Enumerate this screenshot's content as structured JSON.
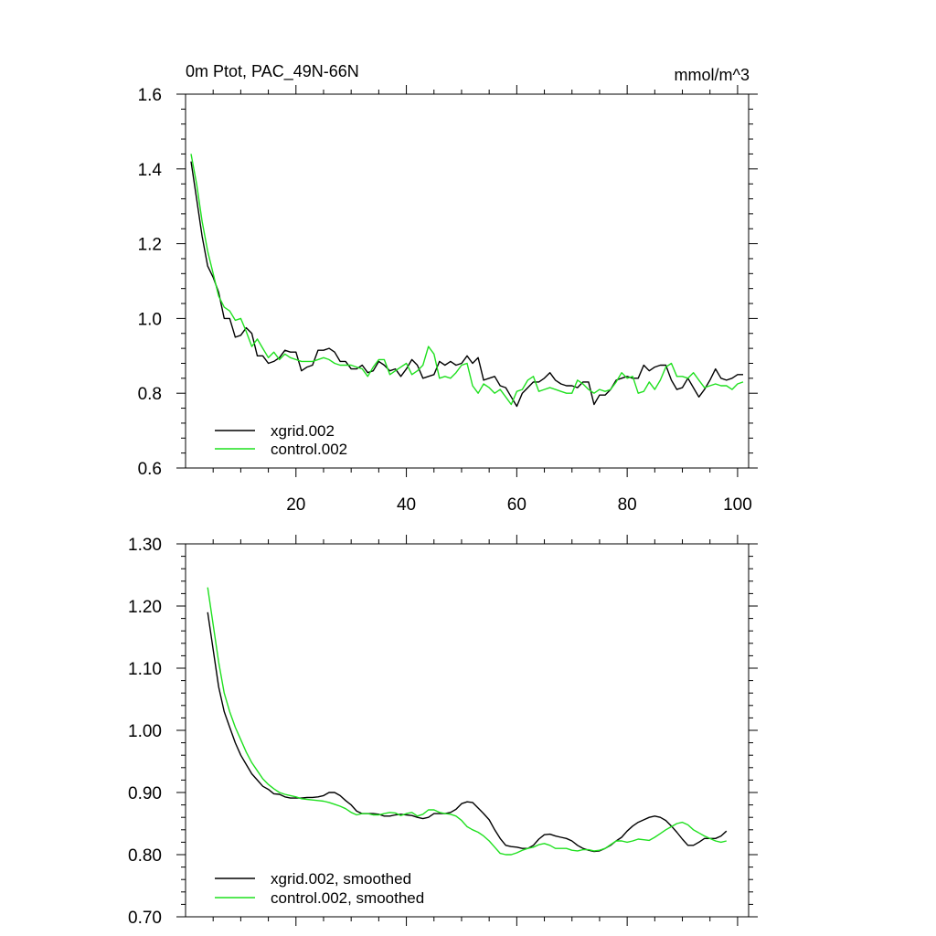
{
  "chart_data": [
    {
      "type": "line",
      "title": "0m Ptot, PAC_49N-66N",
      "units": "mmol/m^3",
      "xlim": [
        0,
        102
      ],
      "ylim": [
        0.6,
        1.6
      ],
      "xticks": [
        20,
        40,
        60,
        80,
        100
      ],
      "xtick_labels": [
        "20",
        "40",
        "60",
        "80",
        100
      ],
      "yticks": [
        0.6,
        0.8,
        1.0,
        1.2,
        1.4,
        1.6
      ],
      "ytick_labels": [
        "0.6",
        "0.8",
        "1.0",
        "1.2",
        "1.4",
        "1.6"
      ],
      "legend": {
        "position": "bottom-left"
      },
      "series": [
        {
          "name": "xgrid.002",
          "color": "#000000",
          "x": [
            1,
            2,
            3,
            4,
            5,
            6,
            7,
            8,
            9,
            10,
            11,
            12,
            13,
            14,
            15,
            16,
            17,
            18,
            19,
            20,
            21,
            22,
            23,
            24,
            25,
            26,
            27,
            28,
            29,
            30,
            31,
            32,
            33,
            34,
            35,
            36,
            37,
            38,
            39,
            40,
            41,
            42,
            43,
            44,
            45,
            46,
            47,
            48,
            49,
            50,
            51,
            52,
            53,
            54,
            55,
            56,
            57,
            58,
            59,
            60,
            61,
            62,
            63,
            64,
            65,
            66,
            67,
            68,
            69,
            70,
            71,
            72,
            73,
            74,
            75,
            76,
            77,
            78,
            79,
            80,
            81,
            82,
            83,
            84,
            85,
            86,
            87,
            88,
            89,
            90,
            91,
            92,
            93,
            94,
            95,
            96,
            97,
            98,
            99,
            100,
            101
          ],
          "values": [
            1.42,
            1.32,
            1.22,
            1.14,
            1.11,
            1.07,
            1.0,
            1.0,
            0.95,
            0.955,
            0.975,
            0.96,
            0.9,
            0.9,
            0.88,
            0.885,
            0.895,
            0.915,
            0.91,
            0.91,
            0.86,
            0.87,
            0.875,
            0.915,
            0.915,
            0.92,
            0.91,
            0.885,
            0.885,
            0.865,
            0.865,
            0.875,
            0.855,
            0.86,
            0.885,
            0.875,
            0.86,
            0.865,
            0.845,
            0.865,
            0.89,
            0.875,
            0.84,
            0.845,
            0.85,
            0.885,
            0.875,
            0.885,
            0.875,
            0.88,
            0.9,
            0.88,
            0.895,
            0.835,
            0.84,
            0.845,
            0.82,
            0.815,
            0.79,
            0.765,
            0.8,
            0.815,
            0.83,
            0.83,
            0.84,
            0.855,
            0.835,
            0.825,
            0.82,
            0.82,
            0.815,
            0.83,
            0.83,
            0.77,
            0.795,
            0.795,
            0.81,
            0.835,
            0.84,
            0.845,
            0.84,
            0.84,
            0.875,
            0.86,
            0.87,
            0.875,
            0.875,
            0.835,
            0.81,
            0.815,
            0.84,
            0.815,
            0.79,
            0.81,
            0.835,
            0.865,
            0.84,
            0.835,
            0.84,
            0.85,
            0.85
          ]
        },
        {
          "name": "control.002",
          "color": "#1fe01f",
          "x": [
            1,
            2,
            3,
            4,
            5,
            6,
            7,
            8,
            9,
            10,
            11,
            12,
            13,
            14,
            15,
            16,
            17,
            18,
            19,
            20,
            21,
            22,
            23,
            24,
            25,
            26,
            27,
            28,
            29,
            30,
            31,
            32,
            33,
            34,
            35,
            36,
            37,
            38,
            39,
            40,
            41,
            42,
            43,
            44,
            45,
            46,
            47,
            48,
            49,
            50,
            51,
            52,
            53,
            54,
            55,
            56,
            57,
            58,
            59,
            60,
            61,
            62,
            63,
            64,
            65,
            66,
            67,
            68,
            69,
            70,
            71,
            72,
            73,
            74,
            75,
            76,
            77,
            78,
            79,
            80,
            81,
            82,
            83,
            84,
            85,
            86,
            87,
            88,
            89,
            90,
            91,
            92,
            93,
            94,
            95,
            96,
            97,
            98,
            99,
            100,
            101
          ],
          "values": [
            1.44,
            1.36,
            1.26,
            1.18,
            1.12,
            1.06,
            1.03,
            1.02,
            0.995,
            1.0,
            0.965,
            0.925,
            0.945,
            0.92,
            0.895,
            0.91,
            0.89,
            0.905,
            0.895,
            0.89,
            0.885,
            0.885,
            0.885,
            0.89,
            0.895,
            0.89,
            0.88,
            0.875,
            0.875,
            0.875,
            0.87,
            0.865,
            0.845,
            0.87,
            0.89,
            0.89,
            0.85,
            0.86,
            0.87,
            0.88,
            0.85,
            0.86,
            0.875,
            0.925,
            0.905,
            0.84,
            0.845,
            0.84,
            0.855,
            0.875,
            0.88,
            0.82,
            0.8,
            0.825,
            0.815,
            0.8,
            0.81,
            0.79,
            0.77,
            0.805,
            0.81,
            0.835,
            0.845,
            0.805,
            0.81,
            0.815,
            0.81,
            0.805,
            0.8,
            0.8,
            0.835,
            0.825,
            0.81,
            0.8,
            0.81,
            0.805,
            0.81,
            0.83,
            0.855,
            0.84,
            0.845,
            0.8,
            0.805,
            0.83,
            0.81,
            0.835,
            0.87,
            0.88,
            0.845,
            0.845,
            0.84,
            0.855,
            0.835,
            0.815,
            0.82,
            0.825,
            0.82,
            0.82,
            0.81,
            0.825,
            0.83
          ]
        }
      ]
    },
    {
      "type": "line",
      "title": "",
      "xlim": [
        0,
        102
      ],
      "ylim": [
        0.7,
        1.3
      ],
      "xticks": [
        20,
        40,
        60,
        80,
        100
      ],
      "yticks": [
        0.7,
        0.8,
        0.9,
        1.0,
        1.1,
        1.2,
        1.3
      ],
      "ytick_labels": [
        "0.70",
        "0.80",
        "0.90",
        "1.00",
        "1.10",
        "1.20",
        "1.30"
      ],
      "legend": {
        "position": "bottom-left"
      },
      "series": [
        {
          "name": "xgrid.002, smoothed",
          "color": "#000000",
          "x": [
            4,
            5,
            6,
            7,
            8,
            9,
            10,
            11,
            12,
            13,
            14,
            15,
            16,
            17,
            18,
            19,
            20,
            21,
            22,
            23,
            24,
            25,
            26,
            27,
            28,
            29,
            30,
            31,
            32,
            33,
            34,
            35,
            36,
            37,
            38,
            39,
            40,
            41,
            42,
            43,
            44,
            45,
            46,
            47,
            48,
            49,
            50,
            51,
            52,
            53,
            54,
            55,
            56,
            57,
            58,
            59,
            60,
            61,
            62,
            63,
            64,
            65,
            66,
            67,
            68,
            69,
            70,
            71,
            72,
            73,
            74,
            75,
            76,
            77,
            78,
            79,
            80,
            81,
            82,
            83,
            84,
            85,
            86,
            87,
            88,
            89,
            90,
            91,
            92,
            93,
            94,
            95,
            96,
            97,
            98
          ],
          "values": [
            1.19,
            1.13,
            1.07,
            1.03,
            1.005,
            0.98,
            0.96,
            0.945,
            0.93,
            0.92,
            0.91,
            0.905,
            0.898,
            0.897,
            0.893,
            0.891,
            0.891,
            0.891,
            0.892,
            0.892,
            0.893,
            0.895,
            0.9,
            0.9,
            0.895,
            0.887,
            0.88,
            0.87,
            0.866,
            0.866,
            0.866,
            0.865,
            0.862,
            0.862,
            0.864,
            0.865,
            0.864,
            0.863,
            0.86,
            0.858,
            0.86,
            0.866,
            0.866,
            0.866,
            0.868,
            0.873,
            0.882,
            0.885,
            0.884,
            0.875,
            0.866,
            0.856,
            0.84,
            0.826,
            0.815,
            0.813,
            0.812,
            0.81,
            0.81,
            0.815,
            0.825,
            0.832,
            0.833,
            0.83,
            0.828,
            0.826,
            0.822,
            0.815,
            0.81,
            0.807,
            0.805,
            0.806,
            0.81,
            0.815,
            0.822,
            0.828,
            0.838,
            0.846,
            0.852,
            0.856,
            0.86,
            0.862,
            0.86,
            0.855,
            0.846,
            0.836,
            0.825,
            0.815,
            0.815,
            0.82,
            0.826,
            0.826,
            0.826,
            0.83,
            0.838
          ]
        },
        {
          "name": "control.002, smoothed",
          "color": "#1fe01f",
          "x": [
            4,
            5,
            6,
            7,
            8,
            9,
            10,
            11,
            12,
            13,
            14,
            15,
            16,
            17,
            18,
            19,
            20,
            21,
            22,
            23,
            24,
            25,
            26,
            27,
            28,
            29,
            30,
            31,
            32,
            33,
            34,
            35,
            36,
            37,
            38,
            39,
            40,
            41,
            42,
            43,
            44,
            45,
            46,
            47,
            48,
            49,
            50,
            51,
            52,
            53,
            54,
            55,
            56,
            57,
            58,
            59,
            60,
            61,
            62,
            63,
            64,
            65,
            66,
            67,
            68,
            69,
            70,
            71,
            72,
            73,
            74,
            75,
            76,
            77,
            78,
            79,
            80,
            81,
            82,
            83,
            84,
            85,
            86,
            87,
            88,
            89,
            90,
            91,
            92,
            93,
            94,
            95,
            96,
            97,
            98
          ],
          "values": [
            1.23,
            1.17,
            1.11,
            1.06,
            1.03,
            1.005,
            0.985,
            0.965,
            0.948,
            0.935,
            0.922,
            0.913,
            0.906,
            0.9,
            0.897,
            0.895,
            0.893,
            0.89,
            0.889,
            0.888,
            0.887,
            0.886,
            0.884,
            0.881,
            0.878,
            0.874,
            0.868,
            0.864,
            0.866,
            0.866,
            0.864,
            0.864,
            0.866,
            0.868,
            0.867,
            0.863,
            0.866,
            0.868,
            0.862,
            0.865,
            0.872,
            0.872,
            0.868,
            0.866,
            0.865,
            0.862,
            0.855,
            0.845,
            0.84,
            0.836,
            0.83,
            0.822,
            0.812,
            0.802,
            0.8,
            0.8,
            0.803,
            0.807,
            0.81,
            0.812,
            0.816,
            0.818,
            0.815,
            0.81,
            0.81,
            0.81,
            0.807,
            0.806,
            0.808,
            0.808,
            0.806,
            0.807,
            0.81,
            0.816,
            0.822,
            0.822,
            0.82,
            0.822,
            0.825,
            0.824,
            0.823,
            0.828,
            0.834,
            0.84,
            0.845,
            0.85,
            0.852,
            0.848,
            0.84,
            0.835,
            0.83,
            0.826,
            0.822,
            0.82,
            0.822
          ]
        }
      ]
    }
  ]
}
